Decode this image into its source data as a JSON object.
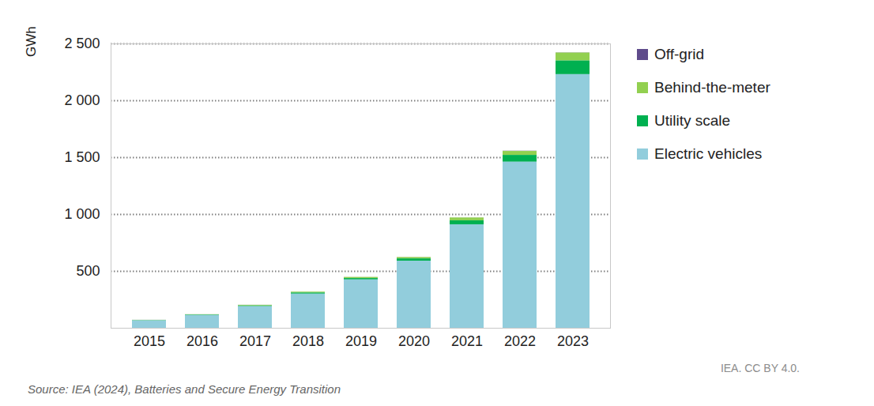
{
  "chart_data": {
    "type": "bar",
    "stacked": true,
    "grid": true,
    "legend": "right",
    "y_label": "GWh",
    "credit": "IEA. CC BY 4.0.",
    "source": "Source: IEA (2024), Batteries and Secure Energy Transition",
    "categories": [
      "2015",
      "2016",
      "2017",
      "2018",
      "2019",
      "2020",
      "2021",
      "2022",
      "2023"
    ],
    "series": [
      {
        "name": "Off-grid",
        "color": "#5f4b8b",
        "values": [
          0.5,
          0.5,
          0.5,
          0.5,
          0.5,
          1,
          1,
          2,
          2
        ]
      },
      {
        "name": "Behind-the-meter",
        "color": "#92d050",
        "values": [
          2,
          3,
          6,
          8,
          10,
          12,
          25,
          35,
          70
        ]
      },
      {
        "name": "Utility scale",
        "color": "#00b050",
        "values": [
          3,
          4,
          6,
          10,
          12,
          20,
          35,
          60,
          120
        ]
      },
      {
        "name": "Electric vehicles",
        "color": "#92cddc",
        "values": [
          65,
          112,
          190,
          300,
          425,
          590,
          910,
          1460,
          2230
        ]
      }
    ],
    "ylim": [
      0,
      2500
    ],
    "yticks": [
      500,
      {
        "value": 1000,
        "label": "1 000"
      },
      {
        "value": 1500,
        "label": "1 500"
      },
      {
        "value": 2000,
        "label": "2 000"
      },
      {
        "value": 2500,
        "label": "2 500"
      }
    ]
  }
}
